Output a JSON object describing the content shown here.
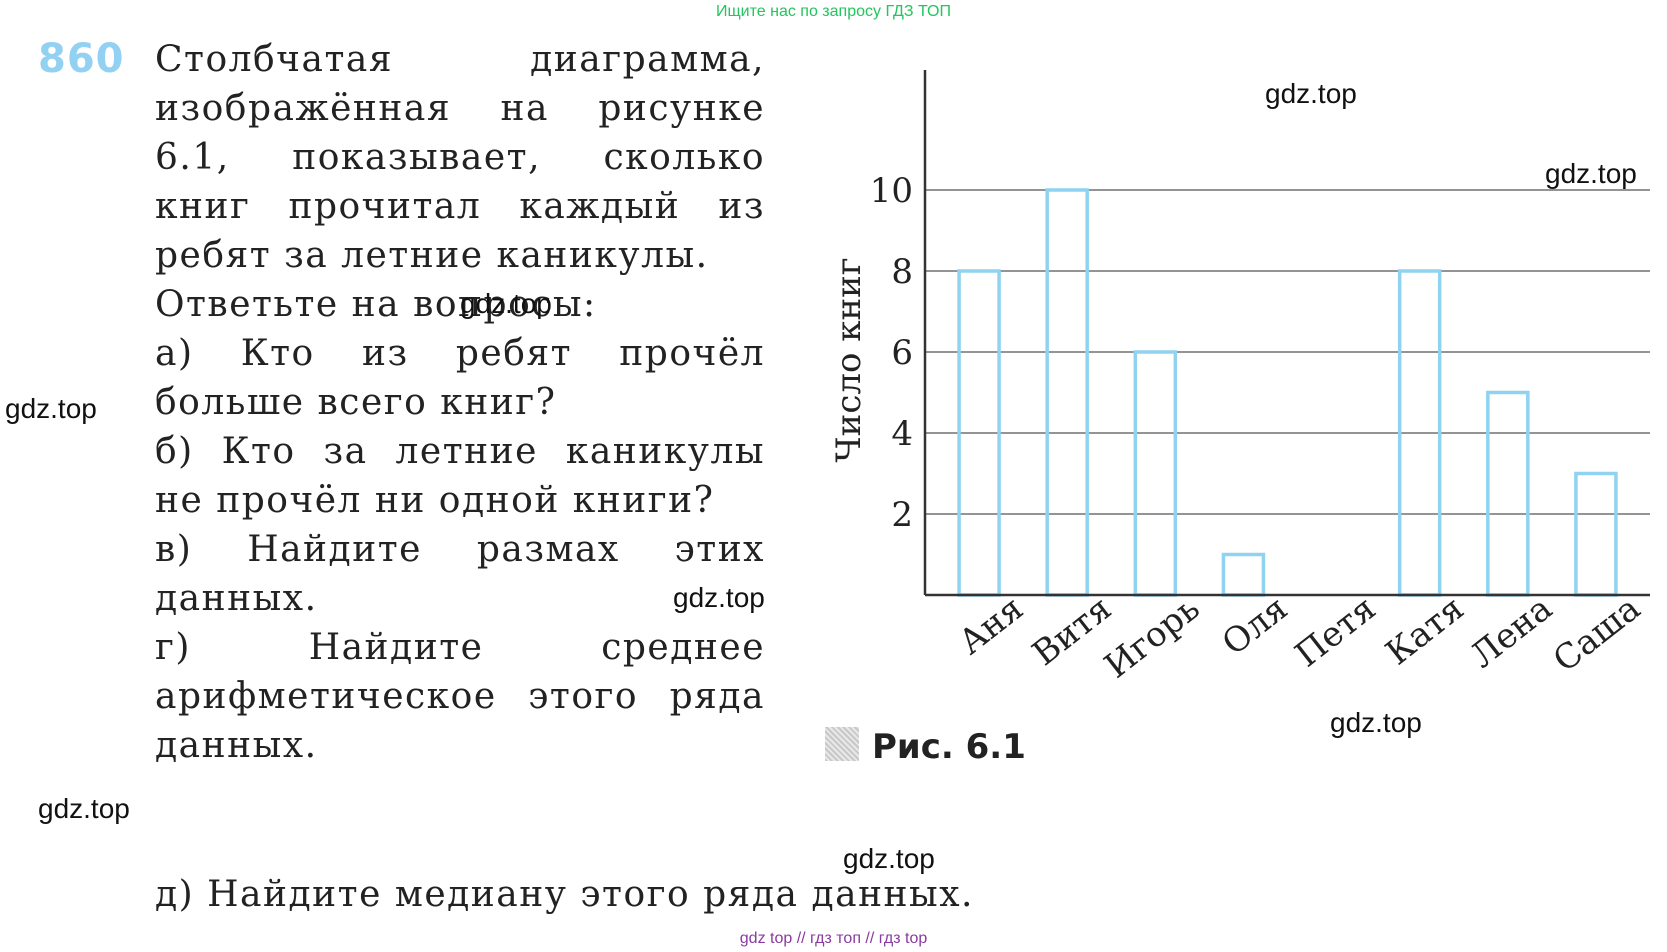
{
  "banner": "Ищите нас по запросу ГДЗ ТОП",
  "problem": {
    "number": "860",
    "intro": "Столбчатая диаграмма, изображённая на рисунке 6.1, показывает, сколько книг прочитал каждый из ребят за летние каникулы.",
    "prompt": "Ответьте на вопросы:",
    "questions": [
      "а) Кто из ребят прочёл больше всего книг?",
      "б) Кто за летние каникулы не прочёл ни одной книги?",
      "в) Найдите размах этих данных.",
      "г) Найдите среднее арифметическое этого ряда данных.",
      "д) Найдите медиану этого ряда данных."
    ]
  },
  "figure_caption": "Рис. 6.1",
  "watermarks": [
    "gdz.top",
    "gdz.top",
    "gdz.top",
    "gdz.top",
    "gdz.top",
    "gdz.top",
    "gdz.top",
    "gdz.top",
    "gdz.top"
  ],
  "footer": "gdz top // гдз топ // гдз top",
  "chart_data": {
    "type": "bar",
    "categories": [
      "Аня",
      "Витя",
      "Игорь",
      "Оля",
      "Петя",
      "Катя",
      "Лена",
      "Саша"
    ],
    "values": [
      8,
      10,
      6,
      1,
      0,
      8,
      5,
      3
    ],
    "ylabel": "Число книг",
    "yticks": [
      2,
      4,
      6,
      8,
      10
    ],
    "ylim": [
      0,
      10.5
    ],
    "grid": true,
    "bar_color": "#8fd3f0"
  }
}
